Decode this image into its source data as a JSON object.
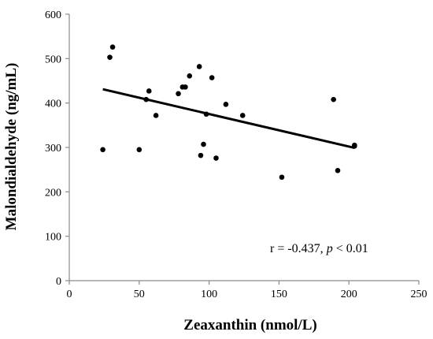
{
  "chart_data": {
    "type": "scatter",
    "xlabel": "Zeaxanthin (nmol/L)",
    "ylabel": "Malondialdehyde (ng/mL)",
    "xlim": [
      0,
      250
    ],
    "ylim": [
      0,
      600
    ],
    "xticks": [
      "0",
      "50",
      "100",
      "150",
      "200",
      "250"
    ],
    "yticks": [
      "0",
      "100",
      "200",
      "300",
      "400",
      "500",
      "600"
    ],
    "grid": false,
    "points": [
      {
        "x": 24,
        "y": 295
      },
      {
        "x": 29,
        "y": 503
      },
      {
        "x": 31,
        "y": 526
      },
      {
        "x": 50,
        "y": 295
      },
      {
        "x": 55,
        "y": 408
      },
      {
        "x": 57,
        "y": 427
      },
      {
        "x": 62,
        "y": 372
      },
      {
        "x": 78,
        "y": 421
      },
      {
        "x": 81,
        "y": 436
      },
      {
        "x": 83,
        "y": 436
      },
      {
        "x": 86,
        "y": 461
      },
      {
        "x": 93,
        "y": 482
      },
      {
        "x": 94,
        "y": 282
      },
      {
        "x": 96,
        "y": 307
      },
      {
        "x": 98,
        "y": 375
      },
      {
        "x": 102,
        "y": 457
      },
      {
        "x": 105,
        "y": 276
      },
      {
        "x": 112,
        "y": 397
      },
      {
        "x": 124,
        "y": 372
      },
      {
        "x": 152,
        "y": 233
      },
      {
        "x": 189,
        "y": 408
      },
      {
        "x": 192,
        "y": 248
      },
      {
        "x": 204,
        "y": 303
      },
      {
        "x": 204,
        "y": 305
      }
    ],
    "trendline": {
      "x": [
        24,
        204
      ],
      "y": [
        431,
        299
      ]
    },
    "annotation": {
      "r_text": "r = -0.437,",
      "p_symbol": "p",
      "p_text": "< 0.01"
    }
  }
}
